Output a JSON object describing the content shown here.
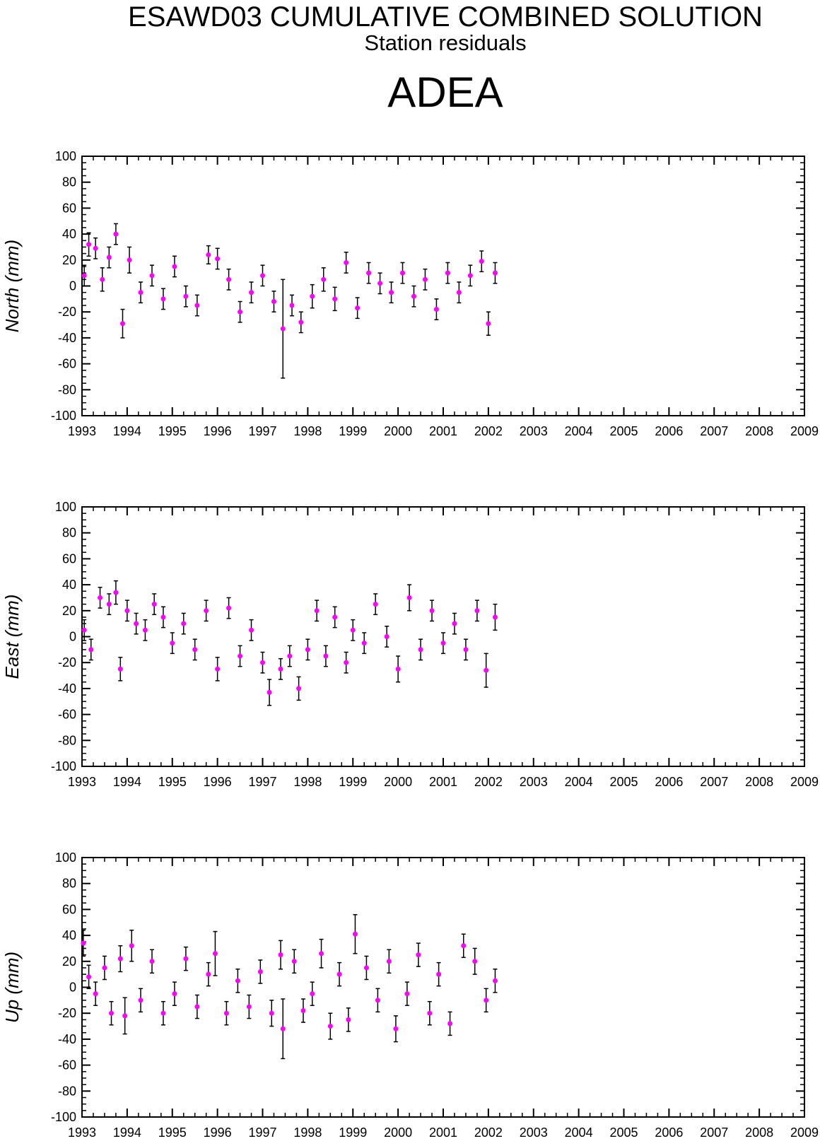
{
  "header": {
    "title": "ESAWD03 CUMULATIVE COMBINED SOLUTION",
    "subtitle": "Station residuals",
    "station": "ADEA"
  },
  "colors": {
    "marker": "#ff00ff",
    "errorbar": "#000000",
    "axis": "#000000"
  },
  "chart_data": [
    {
      "type": "scatter",
      "ylabel": "North (mm)",
      "xlim": [
        1993,
        2009
      ],
      "ylim": [
        -100,
        100
      ],
      "x_ticks": [
        "1993",
        "1994",
        "1995",
        "1996",
        "1997",
        "1998",
        "1999",
        "2000",
        "2001",
        "2002",
        "2003",
        "2004",
        "2005",
        "2006",
        "2007",
        "2008",
        "2009"
      ],
      "y_ticks": [
        "100",
        "80",
        "60",
        "40",
        "20",
        "0",
        "-20",
        "-40",
        "-60",
        "-80",
        "-100"
      ],
      "series": [
        {
          "x": [
            1993.05,
            1993.15,
            1993.3,
            1993.45,
            1993.6,
            1993.75,
            1993.9,
            1994.05,
            1994.3,
            1994.55,
            1994.8,
            1995.05,
            1995.3,
            1995.55,
            1995.8,
            1996.0,
            1996.25,
            1996.5,
            1996.75,
            1997.0,
            1997.25,
            1997.45,
            1997.65,
            1997.85,
            1998.1,
            1998.35,
            1998.6,
            1998.85,
            1999.1,
            1999.35,
            1999.6,
            1999.85,
            2000.1,
            2000.35,
            2000.6,
            2000.85,
            2001.1,
            2001.35,
            2001.6,
            2001.85,
            2002.0,
            2002.15
          ],
          "y": [
            8,
            32,
            29,
            5,
            22,
            40,
            -29,
            20,
            -5,
            8,
            -10,
            15,
            -8,
            -15,
            24,
            21,
            5,
            -20,
            -5,
            8,
            -12,
            -33,
            -15,
            -28,
            -8,
            5,
            -10,
            18,
            -17,
            10,
            2,
            -5,
            10,
            -8,
            5,
            -18,
            10,
            -5,
            8,
            19,
            -29,
            10
          ],
          "err": [
            8,
            9,
            8,
            9,
            8,
            8,
            11,
            10,
            8,
            8,
            8,
            8,
            8,
            8,
            7,
            8,
            8,
            8,
            8,
            8,
            8,
            38,
            8,
            8,
            9,
            9,
            9,
            8,
            8,
            8,
            8,
            8,
            8,
            8,
            8,
            8,
            8,
            8,
            8,
            8,
            9,
            8
          ]
        }
      ]
    },
    {
      "type": "scatter",
      "ylabel": "East (mm)",
      "xlim": [
        1993,
        2009
      ],
      "ylim": [
        -100,
        100
      ],
      "x_ticks": [
        "1993",
        "1994",
        "1995",
        "1996",
        "1997",
        "1998",
        "1999",
        "2000",
        "2001",
        "2002",
        "2003",
        "2004",
        "2005",
        "2006",
        "2007",
        "2008",
        "2009"
      ],
      "y_ticks": [
        "100",
        "80",
        "60",
        "40",
        "20",
        "0",
        "-20",
        "-40",
        "-60",
        "-80",
        "-100"
      ],
      "series": [
        {
          "x": [
            1993.05,
            1993.2,
            1993.4,
            1993.6,
            1993.75,
            1993.85,
            1994.0,
            1994.2,
            1994.4,
            1994.6,
            1994.8,
            1995.0,
            1995.25,
            1995.5,
            1995.75,
            1996.0,
            1996.25,
            1996.5,
            1996.75,
            1997.0,
            1997.15,
            1997.4,
            1997.6,
            1997.8,
            1998.0,
            1998.2,
            1998.4,
            1998.6,
            1998.85,
            1999.0,
            1999.25,
            1999.5,
            1999.75,
            2000.0,
            2000.25,
            2000.5,
            2000.75,
            2001.0,
            2001.25,
            2001.5,
            2001.75,
            2001.95,
            2002.15
          ],
          "y": [
            5,
            -10,
            30,
            25,
            34,
            -25,
            20,
            10,
            5,
            25,
            15,
            -5,
            10,
            -10,
            20,
            -25,
            22,
            -15,
            5,
            -20,
            -43,
            -25,
            -15,
            -40,
            -10,
            20,
            -15,
            15,
            -20,
            5,
            -5,
            25,
            0,
            -25,
            30,
            -10,
            20,
            -5,
            10,
            -10,
            20,
            -26,
            15
          ],
          "err": [
            8,
            8,
            8,
            8,
            9,
            9,
            8,
            8,
            8,
            8,
            8,
            8,
            8,
            8,
            8,
            9,
            8,
            8,
            8,
            8,
            10,
            8,
            8,
            9,
            8,
            8,
            8,
            8,
            8,
            8,
            8,
            8,
            8,
            10,
            10,
            8,
            8,
            8,
            8,
            8,
            8,
            13,
            10
          ]
        }
      ]
    },
    {
      "type": "scatter",
      "ylabel": "Up (mm)",
      "xlim": [
        1993,
        2009
      ],
      "ylim": [
        -100,
        100
      ],
      "x_ticks": [
        "1993",
        "1994",
        "1995",
        "1996",
        "1997",
        "1998",
        "1999",
        "2000",
        "2001",
        "2002",
        "2003",
        "2004",
        "2005",
        "2006",
        "2007",
        "2008",
        "2009"
      ],
      "y_ticks": [
        "100",
        "80",
        "60",
        "40",
        "20",
        "0",
        "-20",
        "-40",
        "-60",
        "-80",
        "-100"
      ],
      "series": [
        {
          "x": [
            1993.03,
            1993.15,
            1993.3,
            1993.5,
            1993.65,
            1993.85,
            1993.95,
            1994.1,
            1994.3,
            1994.55,
            1994.8,
            1995.05,
            1995.3,
            1995.55,
            1995.8,
            1995.95,
            1996.2,
            1996.45,
            1996.7,
            1996.95,
            1997.2,
            1997.4,
            1997.45,
            1997.7,
            1997.9,
            1998.1,
            1998.3,
            1998.5,
            1998.7,
            1998.9,
            1999.05,
            1999.3,
            1999.55,
            1999.8,
            1999.95,
            2000.2,
            2000.45,
            2000.7,
            2000.9,
            2001.15,
            2001.45,
            2001.7,
            2001.95,
            2002.15
          ],
          "y": [
            34,
            8,
            -5,
            15,
            -20,
            22,
            -22,
            32,
            -10,
            20,
            -20,
            -5,
            22,
            -15,
            10,
            26,
            -20,
            5,
            -15,
            12,
            -20,
            25,
            -32,
            20,
            -18,
            -5,
            26,
            -30,
            10,
            -25,
            41,
            15,
            -10,
            20,
            -32,
            -5,
            25,
            -20,
            10,
            -28,
            32,
            20,
            -10,
            5
          ],
          "err": [
            10,
            9,
            9,
            9,
            9,
            10,
            14,
            12,
            9,
            9,
            9,
            9,
            9,
            9,
            9,
            17,
            9,
            9,
            9,
            9,
            10,
            11,
            23,
            9,
            9,
            9,
            11,
            10,
            9,
            9,
            15,
            9,
            9,
            9,
            10,
            9,
            9,
            9,
            9,
            9,
            9,
            10,
            9,
            9
          ]
        }
      ]
    }
  ]
}
